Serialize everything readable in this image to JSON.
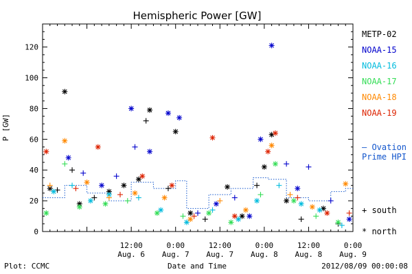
{
  "chart_data": {
    "type": "scatter",
    "title": "Hemispheric Power [GW]",
    "ylabel": "P [GW]",
    "xlabel": "Date and Time",
    "ylim": [
      0,
      135
    ],
    "xlim": [
      "2012-08-05 12:00",
      "2012-08-09 00:00"
    ],
    "yticks": [
      0,
      20,
      40,
      60,
      80,
      100,
      120
    ],
    "xticks": [
      {
        "time": "2012-08-06 12:00",
        "top": "12:00",
        "bottom": "Aug. 6"
      },
      {
        "time": "2012-08-07 00:00",
        "top": "0:00",
        "bottom": "Aug. 7"
      },
      {
        "time": "2012-08-07 12:00",
        "top": "12:00",
        "bottom": "Aug. 7"
      },
      {
        "time": "2012-08-08 00:00",
        "top": "0:00",
        "bottom": "Aug. 8"
      },
      {
        "time": "2012-08-08 12:00",
        "top": "12:00",
        "bottom": "Aug. 8"
      },
      {
        "time": "2012-08-09 00:00",
        "top": "0:00",
        "bottom": "Aug. 9"
      }
    ],
    "grid": false,
    "legend_position": "right",
    "series": [
      {
        "name": "METP-02",
        "color": "#000000",
        "points": [
          {
            "t": "2012-08-05 14:00",
            "y": 28,
            "m": "north"
          },
          {
            "t": "2012-08-05 16:00",
            "y": 27,
            "m": "south"
          },
          {
            "t": "2012-08-05 18:00",
            "y": 91,
            "m": "north"
          },
          {
            "t": "2012-08-05 20:00",
            "y": 40,
            "m": "south"
          },
          {
            "t": "2012-08-05 22:00",
            "y": 18,
            "m": "north"
          },
          {
            "t": "2012-08-06 02:00",
            "y": 22,
            "m": "south"
          },
          {
            "t": "2012-08-06 06:00",
            "y": 26,
            "m": "north"
          },
          {
            "t": "2012-08-06 10:00",
            "y": 30,
            "m": "north"
          },
          {
            "t": "2012-08-06 14:00",
            "y": 34,
            "m": "north"
          },
          {
            "t": "2012-08-06 16:00",
            "y": 72,
            "m": "south"
          },
          {
            "t": "2012-08-06 17:00",
            "y": 79,
            "m": "north"
          },
          {
            "t": "2012-08-06 22:00",
            "y": 28,
            "m": "south"
          },
          {
            "t": "2012-08-07 00:00",
            "y": 65,
            "m": "north"
          },
          {
            "t": "2012-08-07 04:00",
            "y": 12,
            "m": "north"
          },
          {
            "t": "2012-08-07 08:00",
            "y": 8,
            "m": "south"
          },
          {
            "t": "2012-08-07 14:00",
            "y": 29,
            "m": "north"
          },
          {
            "t": "2012-08-07 18:00",
            "y": 10,
            "m": "north"
          },
          {
            "t": "2012-08-07 22:00",
            "y": 30,
            "m": "south"
          },
          {
            "t": "2012-08-08 00:00",
            "y": 42,
            "m": "north"
          },
          {
            "t": "2012-08-08 02:00",
            "y": 63,
            "m": "north"
          },
          {
            "t": "2012-08-08 06:00",
            "y": 20,
            "m": "north"
          },
          {
            "t": "2012-08-08 10:00",
            "y": 8,
            "m": "south"
          },
          {
            "t": "2012-08-08 16:00",
            "y": 15,
            "m": "north"
          },
          {
            "t": "2012-08-08 20:00",
            "y": 5,
            "m": "south"
          }
        ]
      },
      {
        "name": "NOAA-15",
        "color": "#0000cc",
        "points": [
          {
            "t": "2012-08-05 19:00",
            "y": 48,
            "m": "north"
          },
          {
            "t": "2012-08-05 23:00",
            "y": 38,
            "m": "south"
          },
          {
            "t": "2012-08-06 04:00",
            "y": 30,
            "m": "north"
          },
          {
            "t": "2012-08-06 08:00",
            "y": 36,
            "m": "south"
          },
          {
            "t": "2012-08-06 12:00",
            "y": 80,
            "m": "north"
          },
          {
            "t": "2012-08-06 13:00",
            "y": 55,
            "m": "south"
          },
          {
            "t": "2012-08-06 17:00",
            "y": 52,
            "m": "north"
          },
          {
            "t": "2012-08-06 22:00",
            "y": 77,
            "m": "north"
          },
          {
            "t": "2012-08-07 01:00",
            "y": 74,
            "m": "north"
          },
          {
            "t": "2012-08-07 06:00",
            "y": 12,
            "m": "south"
          },
          {
            "t": "2012-08-07 11:00",
            "y": 18,
            "m": "north"
          },
          {
            "t": "2012-08-07 16:00",
            "y": 22,
            "m": "south"
          },
          {
            "t": "2012-08-07 20:00",
            "y": 10,
            "m": "north"
          },
          {
            "t": "2012-08-07 23:00",
            "y": 60,
            "m": "north"
          },
          {
            "t": "2012-08-08 02:00",
            "y": 121,
            "m": "north"
          },
          {
            "t": "2012-08-08 06:00",
            "y": 44,
            "m": "south"
          },
          {
            "t": "2012-08-08 09:00",
            "y": 28,
            "m": "north"
          },
          {
            "t": "2012-08-08 12:00",
            "y": 42,
            "m": "south"
          },
          {
            "t": "2012-08-08 18:00",
            "y": 20,
            "m": "south"
          },
          {
            "t": "2012-08-08 23:00",
            "y": 8,
            "m": "north"
          }
        ]
      },
      {
        "name": "NOAA-16",
        "color": "#00bbdd",
        "points": [
          {
            "t": "2012-08-05 15:00",
            "y": 26,
            "m": "north"
          },
          {
            "t": "2012-08-05 20:00",
            "y": 30,
            "m": "south"
          },
          {
            "t": "2012-08-06 01:00",
            "y": 20,
            "m": "north"
          },
          {
            "t": "2012-08-06 06:00",
            "y": 24,
            "m": "north"
          },
          {
            "t": "2012-08-06 14:00",
            "y": 22,
            "m": "south"
          },
          {
            "t": "2012-08-06 20:00",
            "y": 14,
            "m": "north"
          },
          {
            "t": "2012-08-07 03:00",
            "y": 6,
            "m": "north"
          },
          {
            "t": "2012-08-07 10:00",
            "y": 14,
            "m": "south"
          },
          {
            "t": "2012-08-07 17:00",
            "y": 8,
            "m": "north"
          },
          {
            "t": "2012-08-07 22:00",
            "y": 20,
            "m": "north"
          },
          {
            "t": "2012-08-08 04:00",
            "y": 30,
            "m": "south"
          },
          {
            "t": "2012-08-08 10:00",
            "y": 18,
            "m": "north"
          },
          {
            "t": "2012-08-08 15:00",
            "y": 14,
            "m": "north"
          },
          {
            "t": "2012-08-08 21:00",
            "y": 4,
            "m": "south"
          }
        ]
      },
      {
        "name": "NOAA-17",
        "color": "#33dd55",
        "points": [
          {
            "t": "2012-08-05 13:00",
            "y": 12,
            "m": "north"
          },
          {
            "t": "2012-08-05 18:00",
            "y": 44,
            "m": "south"
          },
          {
            "t": "2012-08-05 22:00",
            "y": 16,
            "m": "north"
          },
          {
            "t": "2012-08-06 05:00",
            "y": 18,
            "m": "north"
          },
          {
            "t": "2012-08-06 11:00",
            "y": 20,
            "m": "south"
          },
          {
            "t": "2012-08-06 19:00",
            "y": 12,
            "m": "north"
          },
          {
            "t": "2012-08-07 02:00",
            "y": 10,
            "m": "south"
          },
          {
            "t": "2012-08-07 09:00",
            "y": 12,
            "m": "north"
          },
          {
            "t": "2012-08-07 15:00",
            "y": 6,
            "m": "north"
          },
          {
            "t": "2012-08-07 23:00",
            "y": 24,
            "m": "south"
          },
          {
            "t": "2012-08-08 03:00",
            "y": 44,
            "m": "north"
          },
          {
            "t": "2012-08-08 08:00",
            "y": 20,
            "m": "north"
          },
          {
            "t": "2012-08-08 14:00",
            "y": 10,
            "m": "south"
          },
          {
            "t": "2012-08-08 20:00",
            "y": 6,
            "m": "north"
          }
        ]
      },
      {
        "name": "NOAA-18",
        "color": "#ff8800",
        "points": [
          {
            "t": "2012-08-05 14:00",
            "y": 30,
            "m": "south"
          },
          {
            "t": "2012-08-05 18:00",
            "y": 59,
            "m": "north"
          },
          {
            "t": "2012-08-06 00:00",
            "y": 32,
            "m": "north"
          },
          {
            "t": "2012-08-06 06:00",
            "y": 22,
            "m": "south"
          },
          {
            "t": "2012-08-06 13:00",
            "y": 25,
            "m": "north"
          },
          {
            "t": "2012-08-06 21:00",
            "y": 22,
            "m": "north"
          },
          {
            "t": "2012-08-07 04:00",
            "y": 8,
            "m": "north"
          },
          {
            "t": "2012-08-07 12:00",
            "y": 20,
            "m": "south"
          },
          {
            "t": "2012-08-07 19:00",
            "y": 14,
            "m": "north"
          },
          {
            "t": "2012-08-08 02:00",
            "y": 56,
            "m": "north"
          },
          {
            "t": "2012-08-08 07:00",
            "y": 24,
            "m": "south"
          },
          {
            "t": "2012-08-08 13:00",
            "y": 16,
            "m": "north"
          },
          {
            "t": "2012-08-08 22:00",
            "y": 31,
            "m": "north"
          }
        ]
      },
      {
        "name": "NOAA-19",
        "color": "#dd2200",
        "points": [
          {
            "t": "2012-08-05 13:00",
            "y": 52,
            "m": "north"
          },
          {
            "t": "2012-08-05 21:00",
            "y": 28,
            "m": "south"
          },
          {
            "t": "2012-08-06 03:00",
            "y": 55,
            "m": "north"
          },
          {
            "t": "2012-08-06 09:00",
            "y": 24,
            "m": "south"
          },
          {
            "t": "2012-08-06 15:00",
            "y": 36,
            "m": "north"
          },
          {
            "t": "2012-08-06 23:00",
            "y": 30,
            "m": "north"
          },
          {
            "t": "2012-08-07 05:00",
            "y": 10,
            "m": "south"
          },
          {
            "t": "2012-08-07 10:00",
            "y": 61,
            "m": "north"
          },
          {
            "t": "2012-08-07 16:00",
            "y": 10,
            "m": "north"
          },
          {
            "t": "2012-08-08 01:00",
            "y": 52,
            "m": "north"
          },
          {
            "t": "2012-08-08 03:00",
            "y": 64,
            "m": "north"
          },
          {
            "t": "2012-08-08 09:00",
            "y": 22,
            "m": "south"
          },
          {
            "t": "2012-08-08 17:00",
            "y": 12,
            "m": "north"
          },
          {
            "t": "2012-08-08 23:00",
            "y": 12,
            "m": "south"
          }
        ]
      },
      {
        "name": "Ovation Prime HPI",
        "color": "#1155cc",
        "style": "stepped-dotted",
        "points": [
          {
            "t": "2012-08-05 12:00",
            "y": 22
          },
          {
            "t": "2012-08-05 18:00",
            "y": 30
          },
          {
            "t": "2012-08-06 00:00",
            "y": 25
          },
          {
            "t": "2012-08-06 06:00",
            "y": 20
          },
          {
            "t": "2012-08-06 12:00",
            "y": 32
          },
          {
            "t": "2012-08-06 18:00",
            "y": 28
          },
          {
            "t": "2012-08-07 00:00",
            "y": 33
          },
          {
            "t": "2012-08-07 03:00",
            "y": 15
          },
          {
            "t": "2012-08-07 09:00",
            "y": 24
          },
          {
            "t": "2012-08-07 15:00",
            "y": 28
          },
          {
            "t": "2012-08-07 21:00",
            "y": 35
          },
          {
            "t": "2012-08-08 01:00",
            "y": 34
          },
          {
            "t": "2012-08-08 06:00",
            "y": 22
          },
          {
            "t": "2012-08-08 12:00",
            "y": 20
          },
          {
            "t": "2012-08-08 18:00",
            "y": 26
          },
          {
            "t": "2012-08-08 22:00",
            "y": 28
          },
          {
            "t": "2012-08-09 00:00",
            "y": 28
          }
        ]
      }
    ],
    "legend": {
      "entries": [
        "METP-02",
        "NOAA-15",
        "NOAA-16",
        "NOAA-17",
        "NOAA-18",
        "NOAA-19"
      ],
      "ovation": [
        "— Ovation",
        "Prime HPI"
      ],
      "marker_south": "+ south",
      "marker_north": "* north"
    }
  },
  "footer": {
    "plot_credit": "Plot: CCMC",
    "timestamp": "2012/08/09 00:00:08"
  }
}
